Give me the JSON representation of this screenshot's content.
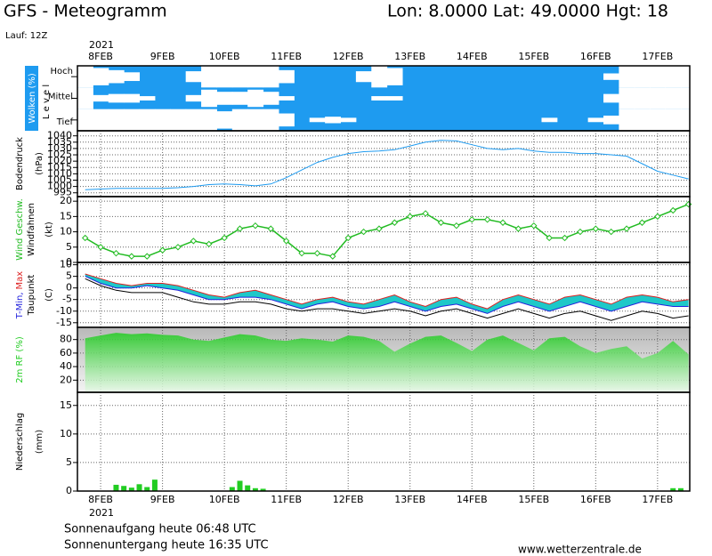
{
  "header": {
    "title": "GFS - Meteogramm",
    "location": "Lon: 8.0000 Lat: 49.0000 Hgt: 18",
    "run": "Lauf: 12Z"
  },
  "chart_data": {
    "type": "meteogram",
    "year": "2021",
    "xlim": [
      -0.375,
      9.52
    ],
    "xticks": [
      {
        "value": 0,
        "label": "8FEB"
      },
      {
        "value": 1,
        "label": "9FEB"
      },
      {
        "value": 2,
        "label": "10FEB"
      },
      {
        "value": 3,
        "label": "11FEB"
      },
      {
        "value": 4,
        "label": "12FEB"
      },
      {
        "value": 5,
        "label": "13FEB"
      },
      {
        "value": 6,
        "label": "14FEB"
      },
      {
        "value": 7,
        "label": "15FEB"
      },
      {
        "value": 8,
        "label": "16FEB"
      },
      {
        "value": 9,
        "label": "17FEB"
      }
    ],
    "x": [
      -0.25,
      0,
      0.25,
      0.5,
      0.75,
      1,
      1.25,
      1.5,
      1.75,
      2,
      2.25,
      2.5,
      2.75,
      3,
      3.25,
      3.5,
      3.75,
      4,
      4.25,
      4.5,
      4.75,
      5,
      5.25,
      5.5,
      5.75,
      6,
      6.25,
      6.5,
      6.75,
      7,
      7.25,
      7.5,
      7.75,
      8,
      8.25,
      8.5,
      8.75,
      9,
      9.25,
      9.5
    ],
    "panels": [
      {
        "type": "cloud",
        "label": "Wolken (%)",
        "level_label": "L e v e l",
        "color": "#1e9bf0",
        "cloud_color": "#ffffff",
        "series": [
          {
            "name": "Hoch",
            "values": [
              100,
              80,
              60,
              40,
              0,
              0,
              0,
              50,
              100,
              100,
              100,
              100,
              100,
              60,
              0,
              0,
              0,
              0,
              50,
              100,
              80,
              0,
              0,
              0,
              0,
              0,
              0,
              0,
              0,
              0,
              0,
              0,
              0,
              0,
              30,
              100,
              100,
              100,
              100,
              100
            ]
          },
          {
            "name": "Mittel",
            "values": [
              100,
              30,
              40,
              40,
              20,
              0,
              0,
              30,
              80,
              60,
              60,
              80,
              60,
              20,
              0,
              0,
              0,
              0,
              0,
              20,
              20,
              0,
              0,
              0,
              0,
              0,
              0,
              0,
              0,
              0,
              0,
              0,
              0,
              0,
              40,
              100,
              100,
              100,
              100,
              100
            ]
          },
          {
            "name": "Tief",
            "values": [
              100,
              100,
              100,
              100,
              100,
              100,
              100,
              100,
              100,
              80,
              100,
              100,
              100,
              60,
              0,
              20,
              30,
              20,
              0,
              0,
              0,
              0,
              0,
              0,
              0,
              0,
              0,
              0,
              0,
              0,
              20,
              0,
              0,
              20,
              40,
              100,
              100,
              100,
              100,
              100
            ]
          }
        ]
      },
      {
        "type": "line",
        "label": "Bodendruck",
        "unit": "(hPa)",
        "color": "#1e9bf0",
        "ylim": [
          992,
          1044
        ],
        "yticks": [
          995,
          1000,
          1005,
          1010,
          1015,
          1020,
          1025,
          1030,
          1035,
          1040
        ],
        "values": [
          997.5,
          998,
          998.5,
          998.5,
          998.5,
          998.5,
          999,
          1000,
          1001.5,
          1002,
          1001.5,
          1000.5,
          1002,
          1007,
          1013,
          1019,
          1023,
          1026,
          1027.5,
          1028,
          1029,
          1032,
          1035,
          1036.5,
          1036,
          1033,
          1030,
          1029,
          1030,
          1028,
          1027,
          1027,
          1026,
          1026,
          1025,
          1024,
          1018,
          1012,
          1009,
          1006
        ]
      },
      {
        "type": "wind",
        "label": "Wind Geschw.",
        "label2": "Windfahnen",
        "unit": "(kt)",
        "color": "#22bb22",
        "ylim": [
          0,
          21.5
        ],
        "yticks": [
          0,
          5,
          10,
          15,
          20
        ],
        "values": [
          8,
          5,
          3,
          2,
          2,
          4,
          5,
          7,
          6,
          8,
          11,
          12,
          11,
          7,
          3,
          3,
          2,
          8,
          10,
          11,
          13,
          15,
          16,
          13,
          12,
          14,
          14,
          13,
          11,
          12,
          8,
          8,
          10,
          11,
          10,
          11,
          13,
          15,
          17,
          19
        ]
      },
      {
        "type": "temp",
        "label2": "Taupunkt",
        "unit": "(C)",
        "range_color": "#1ec8c8",
        "ylim": [
          -17,
          11
        ],
        "yticks": [
          -15,
          -10,
          -5,
          0,
          5,
          10
        ],
        "series": [
          {
            "name": "T-Min,",
            "color": "#2222dd",
            "values": [
              5,
              2,
              0,
              0,
              1,
              0,
              -1,
              -3,
              -5,
              -5,
              -4,
              -4,
              -5,
              -7,
              -9,
              -7,
              -6,
              -8,
              -9,
              -8,
              -6,
              -8,
              -10,
              -8,
              -7,
              -9,
              -11,
              -8,
              -6,
              -8,
              -10,
              -8,
              -6,
              -8,
              -10,
              -8,
              -6,
              -7,
              -8,
              -8
            ]
          },
          {
            "name": "Max",
            "color": "#dd2222",
            "values": [
              6,
              4,
              2,
              1,
              2,
              2,
              1,
              -1,
              -3,
              -4,
              -2,
              -1,
              -3,
              -5,
              -7,
              -5,
              -4,
              -6,
              -7,
              -5,
              -3,
              -6,
              -8,
              -5,
              -4,
              -7,
              -9,
              -5,
              -3,
              -5,
              -7,
              -4,
              -3,
              -5,
              -7,
              -4,
              -3,
              -4,
              -6,
              -5
            ]
          },
          {
            "name": "Taupunkt",
            "color": "#000000",
            "values": [
              4,
              1,
              -1,
              -2,
              -2,
              -2,
              -4,
              -6,
              -7,
              -7,
              -6,
              -6,
              -7,
              -9,
              -10,
              -9,
              -9,
              -10,
              -11,
              -10,
              -9,
              -10,
              -12,
              -10,
              -9,
              -11,
              -13,
              -11,
              -9,
              -11,
              -13,
              -11,
              -10,
              -12,
              -14,
              -12,
              -10,
              -11,
              -13,
              -12
            ]
          }
        ]
      },
      {
        "type": "area",
        "label": "2m RF (%)",
        "color": "#22cc22",
        "ylim": [
          2,
          98
        ],
        "yticks": [
          20,
          40,
          60,
          80
        ],
        "values": [
          82,
          86,
          90,
          88,
          89,
          87,
          86,
          80,
          78,
          83,
          88,
          86,
          80,
          78,
          82,
          80,
          77,
          86,
          84,
          78,
          62,
          74,
          84,
          86,
          75,
          63,
          80,
          86,
          75,
          64,
          82,
          84,
          70,
          60,
          66,
          70,
          52,
          60,
          78,
          58
        ]
      },
      {
        "type": "bar",
        "label": "Niederschlag",
        "unit": "(mm)",
        "color": "#22cc22",
        "ylim": [
          0,
          17.3
        ],
        "yticks": [
          0,
          5,
          10,
          15
        ],
        "x": [
          0.25,
          0.375,
          0.5,
          0.625,
          0.75,
          0.875,
          2.125,
          2.25,
          2.375,
          2.5,
          2.625,
          9.25,
          9.375
        ],
        "values": [
          1.1,
          0.9,
          0.6,
          1.2,
          0.7,
          2.0,
          0.7,
          1.8,
          1.0,
          0.5,
          0.4,
          0.5,
          0.5
        ]
      }
    ]
  },
  "footer": {
    "sunrise": "Sonnenaufgang heute 06:48 UTC",
    "sunset": "Sonnenuntergang heute 16:35 UTC",
    "site": "www.wetterzentrale.de"
  }
}
